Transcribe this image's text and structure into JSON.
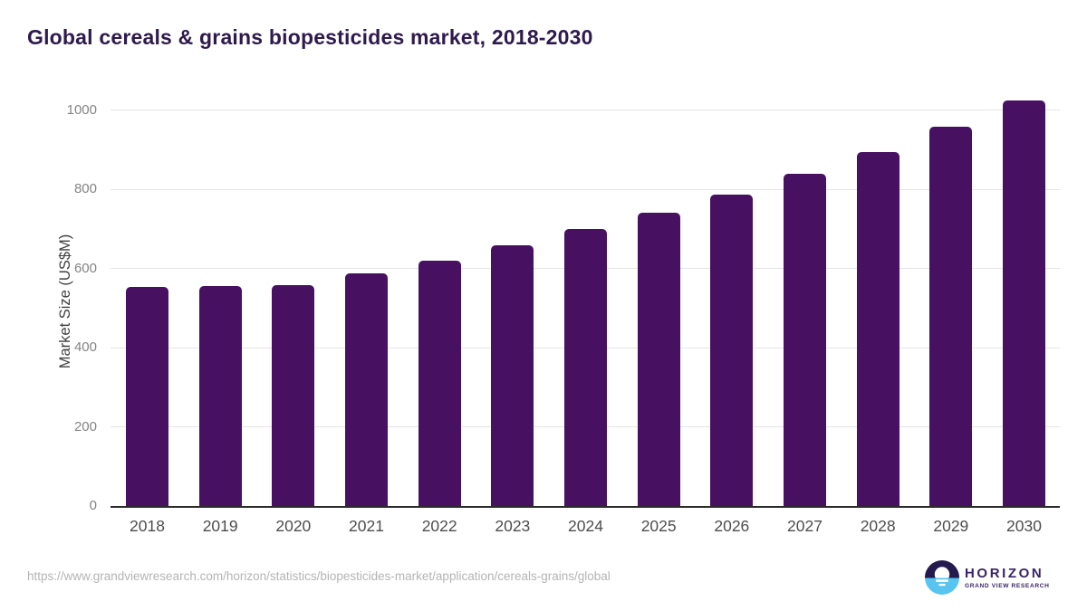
{
  "page": {
    "title": "Global cereals & grains biopesticides market, 2018-2030",
    "source_url": "https://www.grandviewresearch.com/horizon/statistics/biopesticides-market/application/cereals-grains/global"
  },
  "logo": {
    "wordmark": "HORIZON",
    "subtitle": "GRAND VIEW RESEARCH",
    "icon": "sunset-over-water-icon",
    "dark_color": "#241a4e",
    "blue_color": "#58c4f0",
    "text_color": "#3a2367"
  },
  "colors": {
    "bar": "#471061",
    "title_text": "#2e1a4d",
    "gridline": "#e5e5e5",
    "axis_line": "#2b2b2b",
    "y_tick_text": "#848484",
    "x_tick_text": "#4d4d4d",
    "url_text": "#b4b4b4",
    "background": "#ffffff"
  },
  "chart_data": {
    "type": "bar",
    "title": "Global cereals & grains biopesticides market, 2018-2030",
    "xlabel": "",
    "ylabel": "Market Size (US$M)",
    "categories": [
      "2018",
      "2019",
      "2020",
      "2021",
      "2022",
      "2023",
      "2024",
      "2025",
      "2026",
      "2027",
      "2028",
      "2029",
      "2030"
    ],
    "values": [
      553,
      555,
      558,
      589,
      621,
      658,
      699,
      741,
      787,
      840,
      895,
      958,
      1025
    ],
    "yticks": [
      0,
      200,
      400,
      600,
      800,
      1000
    ],
    "ylim": [
      0,
      1050
    ],
    "grid": "horizontal",
    "legend_position": "none",
    "bar_color": "#471061"
  }
}
